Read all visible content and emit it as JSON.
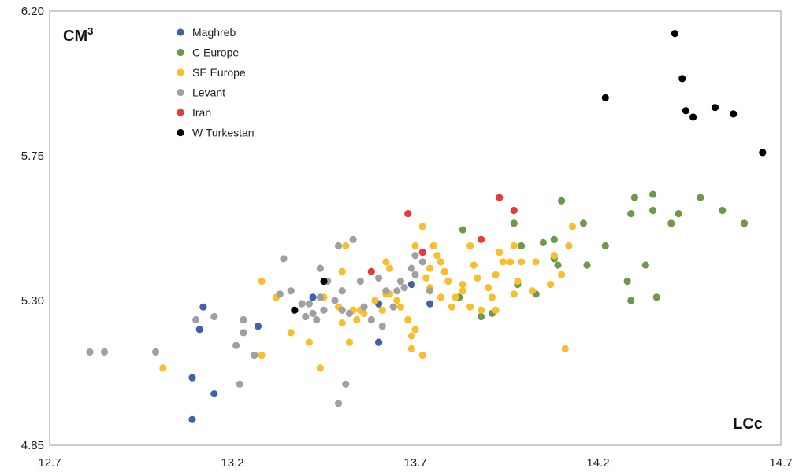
{
  "chart_data": {
    "type": "scatter",
    "title": "",
    "ylabel": "CM",
    "ylabel_sup": "3",
    "xlabel": "LCc",
    "xlim": [
      12.7,
      14.7
    ],
    "ylim": [
      4.85,
      6.2
    ],
    "x_ticks": [
      "12.7",
      "13.2",
      "13.7",
      "14.2",
      "14.7"
    ],
    "y_ticks": [
      "4.85",
      "5.30",
      "5.75",
      "6.20"
    ],
    "grid": false,
    "legend_position": "top-left",
    "series": [
      {
        "name": "Maghreb",
        "color": "#4062aa",
        "points": [
          [
            13.12,
            5.28
          ],
          [
            13.11,
            5.21
          ],
          [
            13.09,
            5.06
          ],
          [
            13.09,
            4.93
          ],
          [
            13.15,
            5.01
          ],
          [
            13.27,
            5.22
          ],
          [
            13.42,
            5.31
          ],
          [
            13.6,
            5.29
          ],
          [
            13.69,
            5.35
          ],
          [
            13.6,
            5.17
          ],
          [
            13.74,
            5.29
          ]
        ]
      },
      {
        "name": "C Europe",
        "color": "#6e994b",
        "points": [
          [
            13.75,
            5.47
          ],
          [
            13.82,
            5.31
          ],
          [
            13.83,
            5.52
          ],
          [
            13.88,
            5.25
          ],
          [
            13.91,
            5.26
          ],
          [
            13.97,
            5.54
          ],
          [
            13.99,
            5.47
          ],
          [
            14.03,
            5.32
          ],
          [
            14.05,
            5.48
          ],
          [
            14.08,
            5.49
          ],
          [
            14.08,
            5.43
          ],
          [
            14.09,
            5.41
          ],
          [
            14.1,
            5.61
          ],
          [
            14.16,
            5.54
          ],
          [
            14.17,
            5.41
          ],
          [
            14.22,
            5.47
          ],
          [
            14.28,
            5.36
          ],
          [
            14.29,
            5.57
          ],
          [
            14.3,
            5.62
          ],
          [
            14.29,
            5.3
          ],
          [
            14.33,
            5.41
          ],
          [
            14.35,
            5.63
          ],
          [
            14.35,
            5.58
          ],
          [
            14.36,
            5.31
          ],
          [
            14.4,
            5.54
          ],
          [
            14.42,
            5.57
          ],
          [
            14.48,
            5.62
          ],
          [
            14.54,
            5.58
          ],
          [
            14.6,
            5.54
          ],
          [
            13.98,
            5.35
          ]
        ]
      },
      {
        "name": "SE Europe",
        "color": "#f9be2d",
        "points": [
          [
            13.01,
            5.09
          ],
          [
            13.28,
            5.36
          ],
          [
            13.28,
            5.13
          ],
          [
            13.32,
            5.31
          ],
          [
            13.36,
            5.2
          ],
          [
            13.41,
            5.17
          ],
          [
            13.44,
            5.09
          ],
          [
            13.45,
            5.31
          ],
          [
            13.49,
            5.28
          ],
          [
            13.5,
            5.23
          ],
          [
            13.5,
            5.39
          ],
          [
            13.51,
            5.47
          ],
          [
            13.52,
            5.17
          ],
          [
            13.53,
            5.27
          ],
          [
            13.54,
            5.24
          ],
          [
            13.55,
            5.27
          ],
          [
            13.56,
            5.26
          ],
          [
            13.58,
            5.24
          ],
          [
            13.59,
            5.3
          ],
          [
            13.61,
            5.27
          ],
          [
            13.62,
            5.32
          ],
          [
            13.62,
            5.42
          ],
          [
            13.63,
            5.4
          ],
          [
            13.63,
            5.32
          ],
          [
            13.65,
            5.3
          ],
          [
            13.66,
            5.28
          ],
          [
            13.68,
            5.24
          ],
          [
            13.69,
            5.19
          ],
          [
            13.69,
            5.15
          ],
          [
            13.7,
            5.21
          ],
          [
            13.72,
            5.13
          ],
          [
            13.74,
            5.34
          ],
          [
            13.76,
            5.44
          ],
          [
            13.77,
            5.31
          ],
          [
            13.78,
            5.39
          ],
          [
            13.79,
            5.36
          ],
          [
            13.8,
            5.28
          ],
          [
            13.83,
            5.35
          ],
          [
            13.83,
            5.33
          ],
          [
            13.85,
            5.47
          ],
          [
            13.86,
            5.41
          ],
          [
            13.87,
            5.37
          ],
          [
            13.88,
            5.27
          ],
          [
            13.9,
            5.34
          ],
          [
            13.91,
            5.31
          ],
          [
            13.92,
            5.38
          ],
          [
            13.92,
            5.27
          ],
          [
            13.93,
            5.45
          ],
          [
            13.94,
            5.42
          ],
          [
            13.96,
            5.42
          ],
          [
            13.97,
            5.47
          ],
          [
            13.98,
            5.36
          ],
          [
            13.99,
            5.42
          ],
          [
            14.02,
            5.33
          ],
          [
            14.03,
            5.42
          ],
          [
            14.07,
            5.35
          ],
          [
            14.08,
            5.44
          ],
          [
            14.1,
            5.38
          ],
          [
            14.11,
            5.15
          ],
          [
            14.12,
            5.47
          ],
          [
            14.13,
            5.53
          ],
          [
            13.72,
            5.53
          ],
          [
            13.74,
            5.4
          ],
          [
            13.75,
            5.47
          ],
          [
            13.77,
            5.42
          ],
          [
            13.7,
            5.47
          ],
          [
            13.73,
            5.37
          ],
          [
            13.81,
            5.31
          ],
          [
            13.85,
            5.28
          ],
          [
            13.97,
            5.32
          ]
        ]
      },
      {
        "name": "Levant",
        "color": "#a0a0a0",
        "points": [
          [
            12.81,
            5.14
          ],
          [
            12.85,
            5.14
          ],
          [
            12.99,
            5.14
          ],
          [
            13.1,
            5.24
          ],
          [
            13.15,
            5.25
          ],
          [
            13.21,
            5.16
          ],
          [
            13.23,
            5.24
          ],
          [
            13.23,
            5.2
          ],
          [
            13.26,
            5.13
          ],
          [
            13.22,
            5.04
          ],
          [
            13.33,
            5.32
          ],
          [
            13.34,
            5.43
          ],
          [
            13.36,
            5.33
          ],
          [
            13.39,
            5.29
          ],
          [
            13.4,
            5.25
          ],
          [
            13.41,
            5.29
          ],
          [
            13.42,
            5.26
          ],
          [
            13.43,
            5.24
          ],
          [
            13.44,
            5.4
          ],
          [
            13.45,
            5.27
          ],
          [
            13.46,
            5.36
          ],
          [
            13.48,
            5.3
          ],
          [
            13.49,
            5.47
          ],
          [
            13.5,
            5.33
          ],
          [
            13.5,
            5.27
          ],
          [
            13.51,
            5.04
          ],
          [
            13.52,
            5.26
          ],
          [
            13.53,
            5.49
          ],
          [
            13.55,
            5.36
          ],
          [
            13.56,
            5.28
          ],
          [
            13.58,
            5.24
          ],
          [
            13.6,
            5.37
          ],
          [
            13.61,
            5.22
          ],
          [
            13.62,
            5.33
          ],
          [
            13.64,
            5.28
          ],
          [
            13.65,
            5.33
          ],
          [
            13.66,
            5.36
          ],
          [
            13.67,
            5.34
          ],
          [
            13.69,
            5.4
          ],
          [
            13.7,
            5.44
          ],
          [
            13.7,
            5.38
          ],
          [
            13.72,
            5.42
          ],
          [
            13.74,
            5.33
          ],
          [
            13.49,
            4.98
          ],
          [
            13.44,
            5.31
          ]
        ]
      },
      {
        "name": "Iran",
        "color": "#e8393a",
        "points": [
          [
            13.68,
            5.57
          ],
          [
            13.72,
            5.45
          ],
          [
            13.88,
            5.49
          ],
          [
            13.93,
            5.62
          ],
          [
            13.97,
            5.58
          ],
          [
            13.58,
            5.39
          ]
        ]
      },
      {
        "name": "W Turkestan",
        "color": "#000000",
        "points": [
          [
            13.37,
            5.27
          ],
          [
            13.45,
            5.36
          ],
          [
            14.22,
            5.93
          ],
          [
            14.41,
            6.13
          ],
          [
            14.43,
            5.99
          ],
          [
            14.44,
            5.89
          ],
          [
            14.46,
            5.87
          ],
          [
            14.52,
            5.9
          ],
          [
            14.57,
            5.88
          ],
          [
            14.65,
            5.76
          ]
        ]
      }
    ]
  }
}
